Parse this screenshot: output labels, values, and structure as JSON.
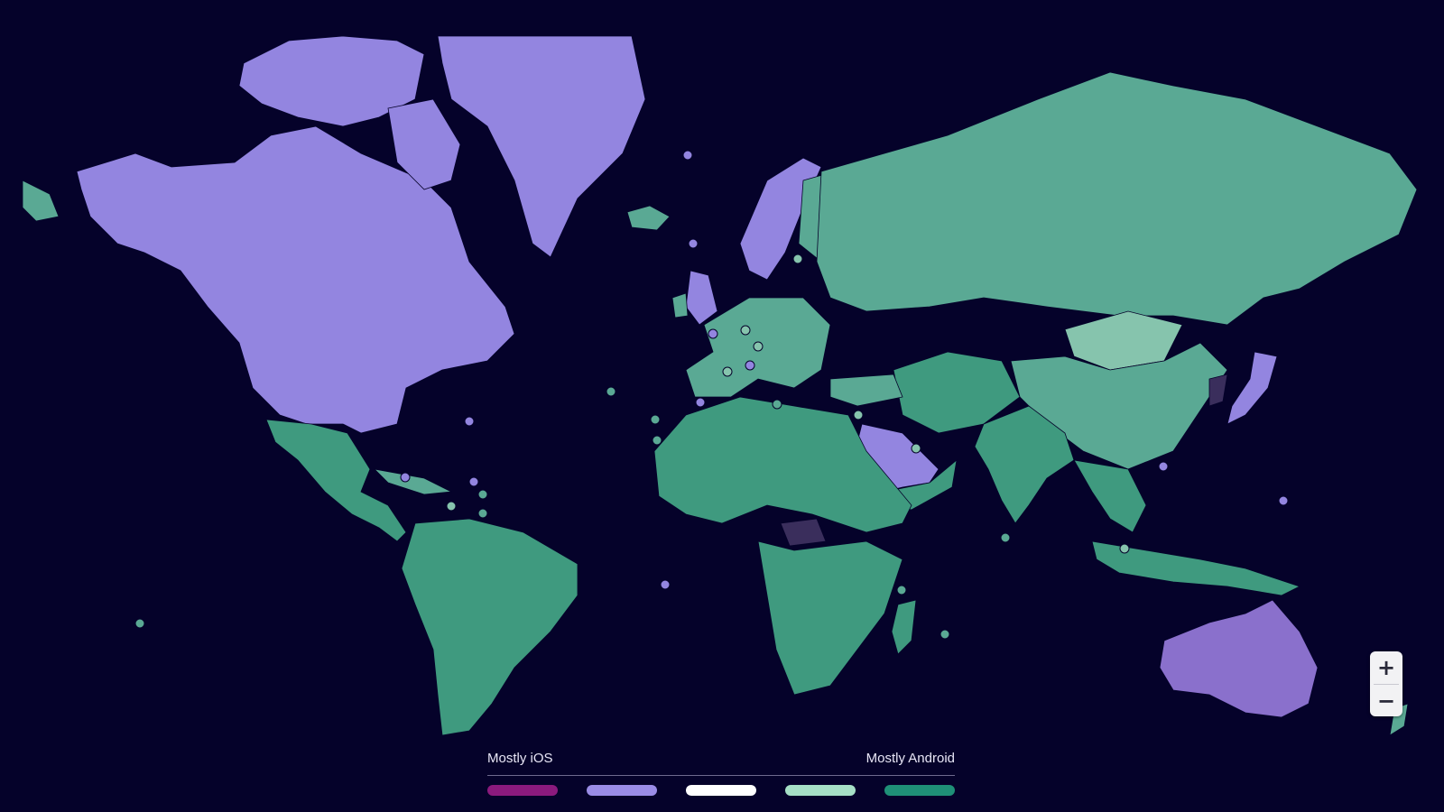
{
  "legend": {
    "left_label": "Mostly iOS",
    "right_label": "Mostly Android",
    "colors": [
      "#8b1a7d",
      "#9a8ce6",
      "#ffffff",
      "#a6e0c6",
      "#1f9077"
    ]
  },
  "map_colors": {
    "ios": "#9385e0",
    "android": "#5aa994",
    "android_light": "#86c4ad",
    "android_dark": "#3f9a7f",
    "no_data": "#3a2e5c",
    "background": "#05022a"
  },
  "zoom": {
    "in_label": "+",
    "out_label": "−"
  }
}
